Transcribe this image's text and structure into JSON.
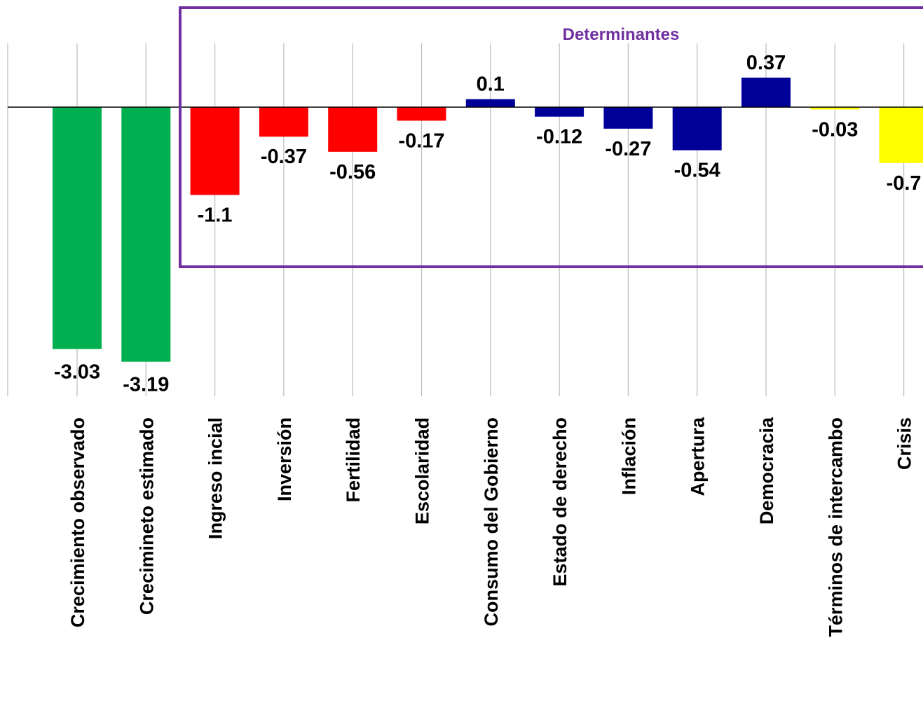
{
  "chart_data": {
    "type": "bar",
    "categories": [
      "Crecimiento observado",
      "Crecimineto estimado",
      "Ingreso incial",
      "Inversión",
      "Fertilidad",
      "Escolaridad",
      "Consumo del Gobierno",
      "Estado de derecho",
      "Inflación",
      "Apertura",
      "Democracia",
      "Términos de intercambo",
      "Crisis"
    ],
    "values": [
      -3.03,
      -3.19,
      -1.1,
      -0.37,
      -0.56,
      -0.17,
      0.1,
      -0.12,
      -0.27,
      -0.54,
      0.37,
      -0.03,
      -0.7
    ],
    "value_labels": [
      "-3.03",
      "-3.19",
      "-1.1",
      "-0.37",
      "-0.56",
      "-0.17",
      "0.1",
      "-0.12",
      "-0.27",
      "-0.54",
      "0.37",
      "-0.03",
      "-0.7"
    ],
    "colors": [
      "#00b050",
      "#00b050",
      "#ff0000",
      "#ff0000",
      "#ff0000",
      "#ff0000",
      "#000099",
      "#000099",
      "#000099",
      "#000099",
      "#000099",
      "#ffff00",
      "#ffff00"
    ],
    "ylim": [
      -3.6,
      0.8
    ],
    "grid": "vertical",
    "annotation": {
      "text": "Determinantes",
      "color": "#7030a0"
    }
  }
}
